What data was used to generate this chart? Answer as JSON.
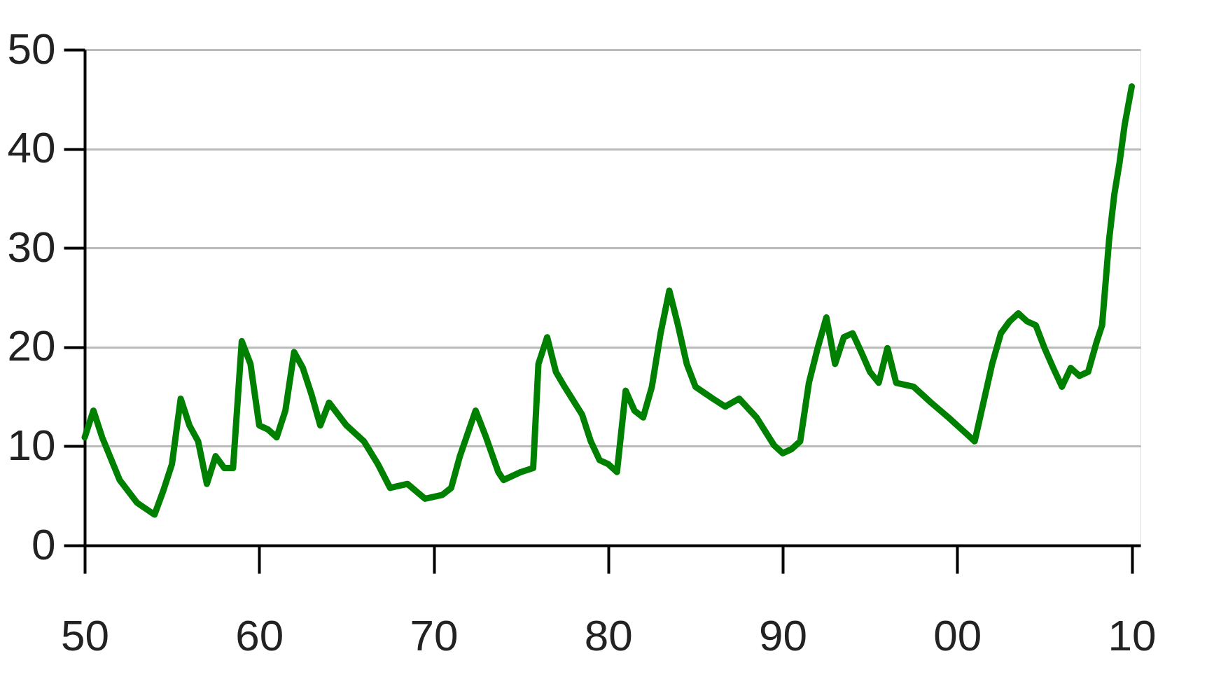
{
  "chart_data": {
    "type": "line",
    "xlim": [
      1950,
      2010.5
    ],
    "ylim": [
      0,
      50
    ],
    "xticks": [
      {
        "value": 1950,
        "label": "50"
      },
      {
        "value": 1960,
        "label": "60"
      },
      {
        "value": 1970,
        "label": "70"
      },
      {
        "value": 1980,
        "label": "80"
      },
      {
        "value": 1990,
        "label": "90"
      },
      {
        "value": 2000,
        "label": "00"
      },
      {
        "value": 2010,
        "label": "10"
      }
    ],
    "yticks": [
      0,
      10,
      20,
      30,
      40,
      50
    ],
    "grid": "y",
    "marker": "none",
    "line_style": "solid",
    "series": [
      {
        "color": "#008000",
        "x": [
          1950,
          1950.5,
          1951,
          1952,
          1953,
          1954,
          1954.5,
          1955,
          1955.5,
          1956,
          1956.5,
          1957,
          1957.5,
          1958,
          1958.5,
          1959,
          1959.5,
          1960,
          1960.5,
          1961,
          1961.5,
          1962,
          1962.5,
          1963,
          1963.5,
          1964,
          1965,
          1966,
          1966.8,
          1967.5,
          1968.5,
          1969.5,
          1970.5,
          1971,
          1971.5,
          1972.4,
          1973,
          1973.7,
          1974,
          1975,
          1975.7,
          1976,
          1976.5,
          1977,
          1977.5,
          1978.5,
          1979,
          1979.5,
          1980,
          1980.5,
          1981,
          1981.5,
          1982,
          1982.5,
          1983,
          1983.5,
          1984,
          1984.5,
          1985,
          1986,
          1986.7,
          1987.5,
          1988.5,
          1989.5,
          1990,
          1990.5,
          1991,
          1991.5,
          1992,
          1992.5,
          1993,
          1993.5,
          1994,
          1994.5,
          1995,
          1995.5,
          1996,
          1996.5,
          1997.5,
          1998.5,
          1999.5,
          2000.5,
          2001,
          2001.5,
          2002,
          2002.5,
          2003,
          2003.5,
          2004,
          2004.5,
          2005,
          2005.5,
          2006,
          2006.5,
          2007,
          2007.5,
          2008,
          2008.3,
          2008.7,
          2009,
          2009.3,
          2009.6,
          2010
        ],
        "values": [
          10.9,
          13.6,
          10.9,
          6.6,
          4.3,
          3.1,
          5.5,
          8.2,
          14.8,
          12.1,
          10.5,
          6.2,
          9.0,
          7.8,
          7.8,
          20.6,
          18.3,
          12.1,
          11.7,
          10.9,
          13.6,
          19.5,
          17.9,
          15.2,
          12.1,
          14.4,
          12.1,
          10.5,
          8.2,
          5.8,
          6.2,
          4.7,
          5.1,
          5.8,
          9.0,
          13.6,
          10.9,
          7.4,
          6.6,
          7.4,
          7.8,
          18.3,
          21.0,
          17.5,
          16.0,
          13.2,
          10.5,
          8.6,
          8.2,
          7.4,
          15.6,
          13.6,
          12.9,
          16.0,
          21.4,
          25.7,
          22.2,
          18.3,
          16.0,
          14.8,
          14.0,
          14.8,
          12.9,
          10.1,
          9.3,
          9.7,
          10.5,
          16.4,
          19.9,
          23.0,
          18.3,
          21.0,
          21.4,
          19.5,
          17.5,
          16.4,
          19.9,
          16.4,
          16.0,
          14.4,
          12.9,
          11.3,
          10.5,
          14.4,
          18.3,
          21.4,
          22.6,
          23.4,
          22.6,
          22.2,
          19.9,
          17.9,
          16.0,
          17.9,
          17.1,
          17.5,
          20.6,
          22.2,
          30.8,
          35.4,
          38.6,
          42.5,
          46.3
        ]
      }
    ]
  }
}
